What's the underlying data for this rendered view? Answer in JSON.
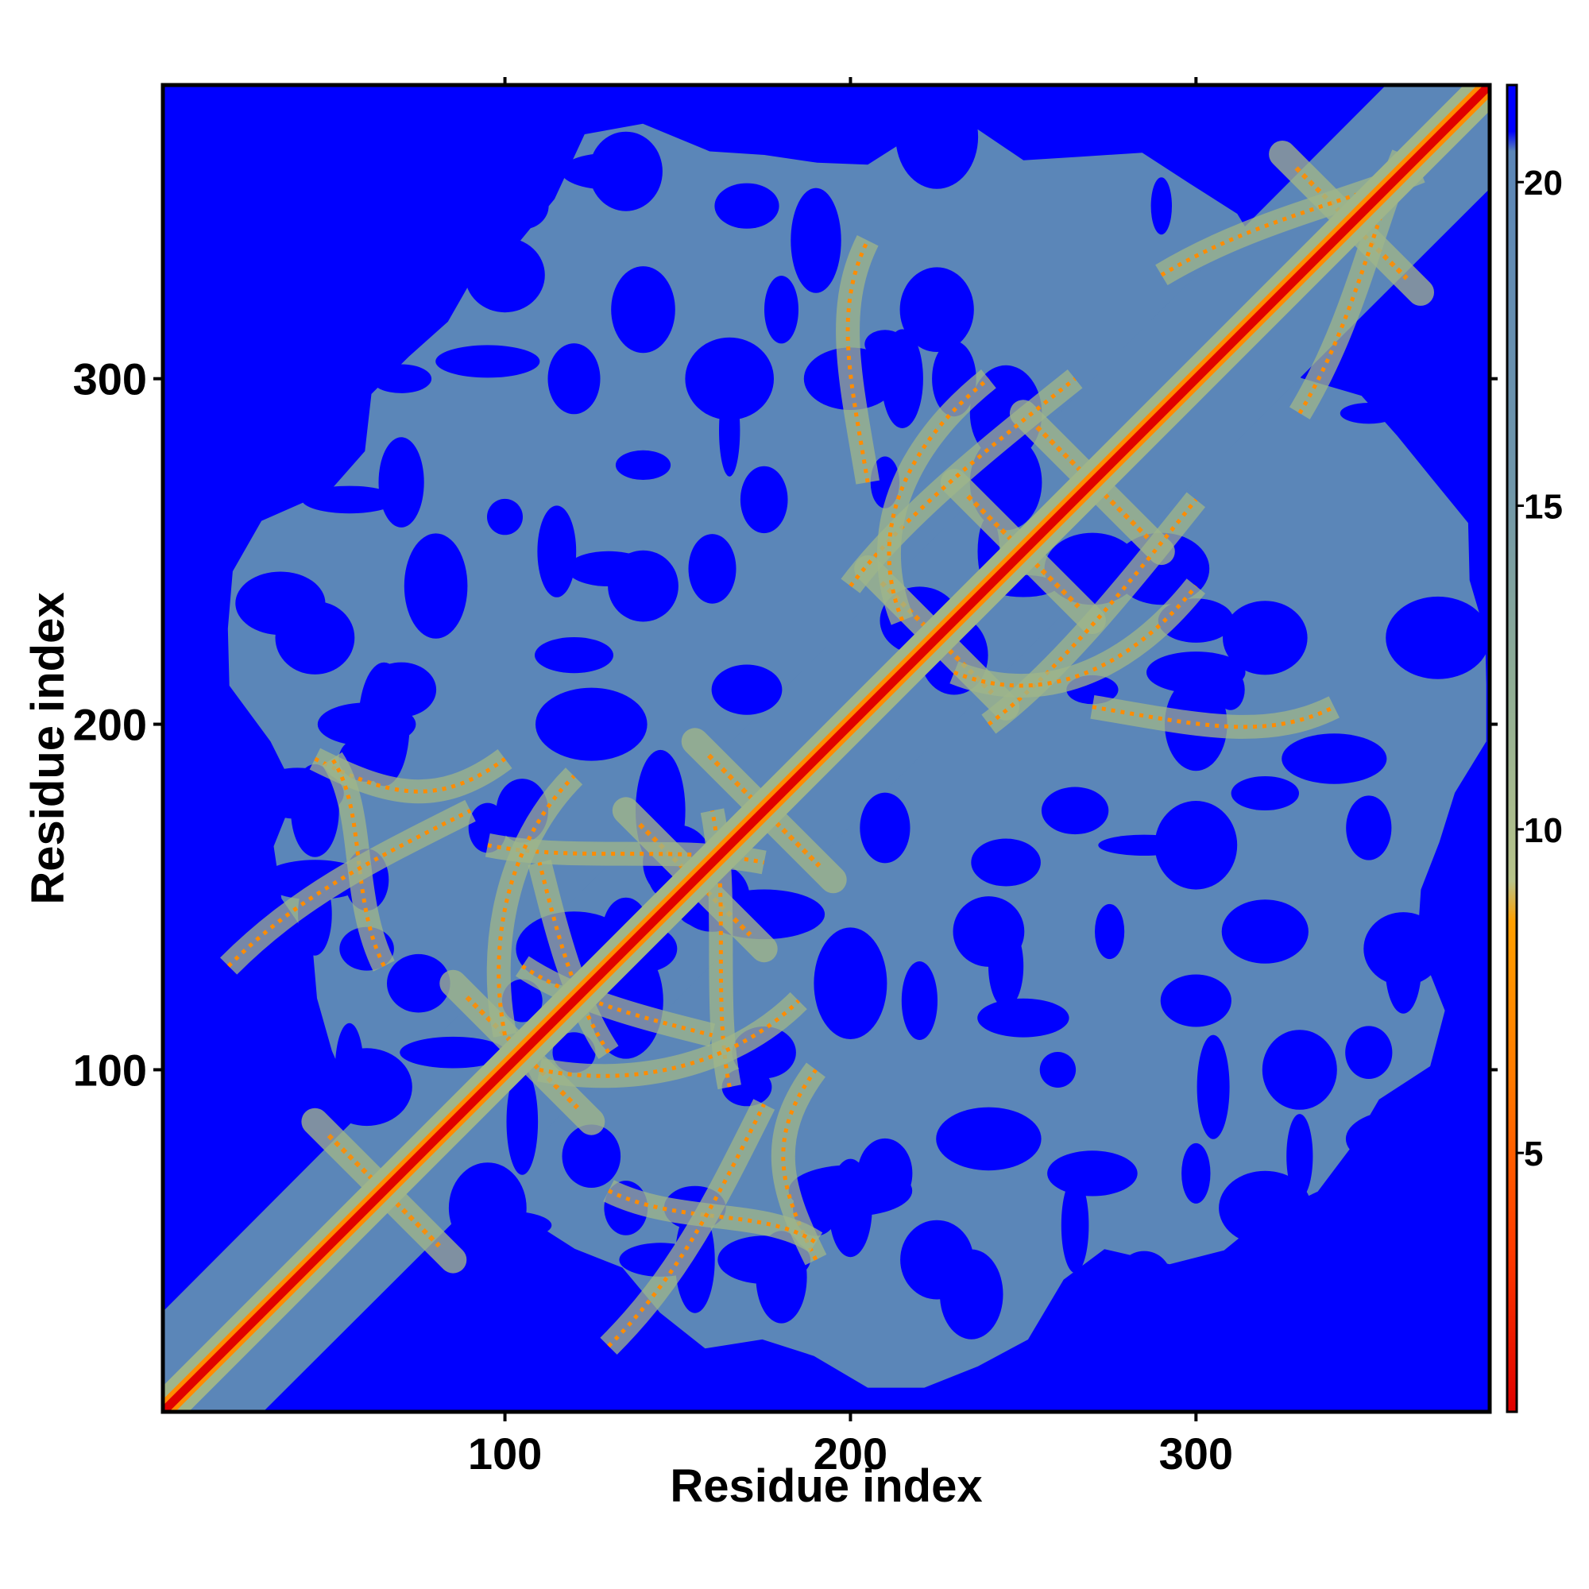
{
  "chart_data": {
    "type": "heatmap",
    "title": "",
    "xlabel": "Residue index",
    "ylabel": "Residue index",
    "n_residues": 385,
    "xlim": [
      1,
      385
    ],
    "ylim": [
      1,
      385
    ],
    "x_ticks": [
      100,
      200,
      300
    ],
    "y_ticks": [
      100,
      200,
      300
    ],
    "x_tick_labels": [
      "100",
      "200",
      "300"
    ],
    "y_tick_labels": [
      "100",
      "200",
      "300"
    ],
    "colorbar": {
      "range": [
        1,
        21.5
      ],
      "ticks": [
        5,
        10,
        15,
        20
      ],
      "tick_labels": [
        "5",
        "10",
        "15",
        "20"
      ],
      "colors": {
        "near": "#e00000",
        "mid": "#ff8c00",
        "contact_edge": "#9fb58a",
        "far": "#5b86b8",
        "cutoff": "#0000ff"
      }
    },
    "diagonal": "red band (distance ~0) along x = y",
    "secondary_structure_crossings": [
      {
        "x": 65,
        "y": 65
      },
      {
        "x": 105,
        "y": 105
      },
      {
        "x": 155,
        "y": 155
      },
      {
        "x": 175,
        "y": 175
      },
      {
        "x": 225,
        "y": 225
      },
      {
        "x": 250,
        "y": 250
      },
      {
        "x": 270,
        "y": 270
      },
      {
        "x": 345,
        "y": 345
      }
    ],
    "grid": false,
    "legend": "colorbar right"
  }
}
